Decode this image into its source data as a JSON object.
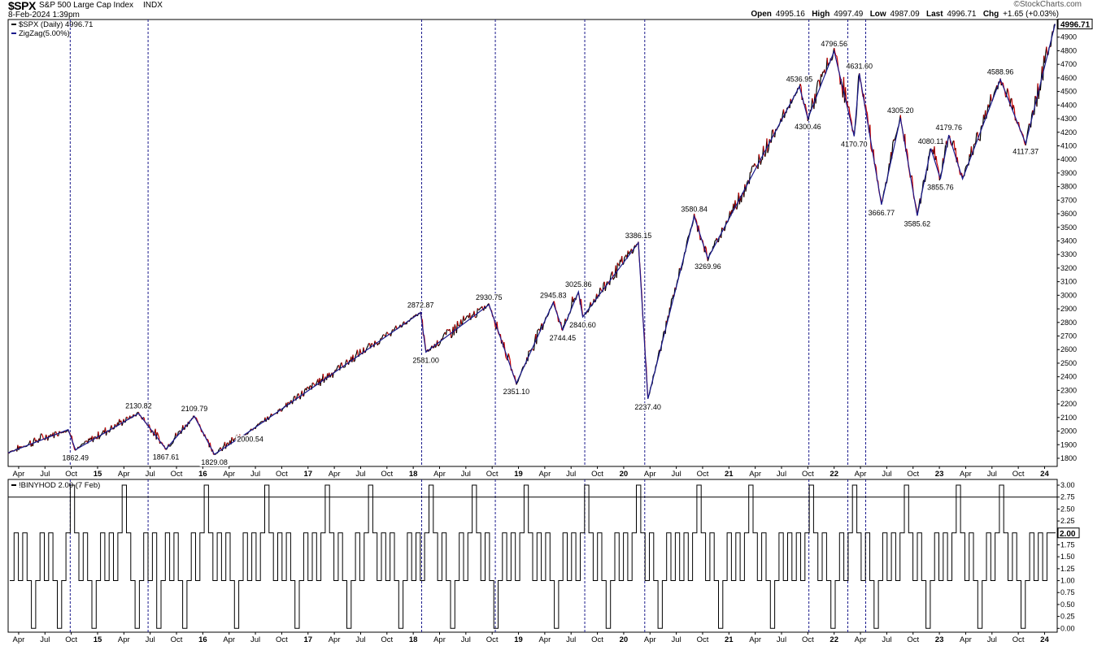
{
  "header": {
    "symbol": "$SPX",
    "name": "S&P 500 Large Cap Index",
    "exchange": "INDX",
    "datetime": "8-Feb-2024 1:39pm",
    "brand": "©StockCharts.com",
    "quote": [
      {
        "label": "Open",
        "value": "4995.16"
      },
      {
        "label": "High",
        "value": "4997.49"
      },
      {
        "label": "Low",
        "value": "4987.09"
      },
      {
        "label": "Last",
        "value": "4996.71"
      },
      {
        "label": "Chg",
        "value": "+1.65 (+0.03%)"
      }
    ]
  },
  "colors": {
    "price_up": "#000000",
    "price_down": "#cc0000",
    "zigzag": "#1a1a8c",
    "vline": "#1a1a8c",
    "indicator": "#000000",
    "threshold": "#000000"
  },
  "chart_data": [
    {
      "type": "line",
      "panel": "price",
      "legend": [
        {
          "name": "$SPX (Daily) 4996.71",
          "color": "#000000"
        },
        {
          "name": "ZigZag(5.00%)",
          "color": "#1a1a8c"
        }
      ],
      "x_tick_labels": [
        "Apr",
        "Jul",
        "Oct",
        "15",
        "Apr",
        "Jul",
        "Oct",
        "16",
        "Apr",
        "Jul",
        "Oct",
        "17",
        "Apr",
        "Jul",
        "Oct",
        "18",
        "Apr",
        "Jul",
        "Oct",
        "19",
        "Apr",
        "Jul",
        "Oct",
        "20",
        "Apr",
        "Jul",
        "Oct",
        "21",
        "Apr",
        "Jul",
        "Oct",
        "22",
        "Apr",
        "Jul",
        "Oct",
        "23",
        "Apr",
        "Jul",
        "Oct",
        "24"
      ],
      "y_ticks": [
        1800,
        1900,
        2000,
        2100,
        2200,
        2300,
        2400,
        2500,
        2600,
        2700,
        2800,
        2900,
        3000,
        3100,
        3200,
        3300,
        3400,
        3500,
        3600,
        3700,
        3800,
        3900,
        4000,
        4100,
        4200,
        4300,
        4400,
        4500,
        4600,
        4700,
        4800,
        4900
      ],
      "ylim": [
        1740,
        5030
      ],
      "xlim": [
        2014.15,
        2024.12
      ],
      "last_value_label": "4996.71",
      "zigzag": [
        {
          "x": 2014.15,
          "y": 1840
        },
        {
          "x": 2014.72,
          "y": 2011,
          "label": ""
        },
        {
          "x": 2014.79,
          "y": 1862.49,
          "label": "1862.49"
        },
        {
          "x": 2015.39,
          "y": 2130.82,
          "label": "2130.82"
        },
        {
          "x": 2015.65,
          "y": 1867.61,
          "label": "1867.61"
        },
        {
          "x": 2015.92,
          "y": 2109.79,
          "label": "2109.79"
        },
        {
          "x": 2016.11,
          "y": 1829.08,
          "label": "1829.08"
        },
        {
          "x": 2016.45,
          "y": 2000.54,
          "label": "2000.54"
        },
        {
          "x": 2018.07,
          "y": 2872.87,
          "label": "2872.87"
        },
        {
          "x": 2018.12,
          "y": 2581.0,
          "label": "2581.00"
        },
        {
          "x": 2018.72,
          "y": 2930.75,
          "label": "2930.75"
        },
        {
          "x": 2018.98,
          "y": 2351.1,
          "label": "2351.10"
        },
        {
          "x": 2019.33,
          "y": 2945.83,
          "label": "2945.83"
        },
        {
          "x": 2019.42,
          "y": 2744.45,
          "label": "2744.45"
        },
        {
          "x": 2019.57,
          "y": 3025.86,
          "label": "3025.86"
        },
        {
          "x": 2019.61,
          "y": 2840.6,
          "label": "2840.60"
        },
        {
          "x": 2020.14,
          "y": 3386.15,
          "label": "3386.15"
        },
        {
          "x": 2020.23,
          "y": 2237.4,
          "label": "2237.40"
        },
        {
          "x": 2020.67,
          "y": 3580.84,
          "label": "3580.84"
        },
        {
          "x": 2020.8,
          "y": 3269.96,
          "label": "3269.96"
        },
        {
          "x": 2021.67,
          "y": 4536.95,
          "label": "4536.95"
        },
        {
          "x": 2021.75,
          "y": 4300.46,
          "label": "4300.46"
        },
        {
          "x": 2022.0,
          "y": 4796.56,
          "label": "4796.56"
        },
        {
          "x": 2022.19,
          "y": 4170.7,
          "label": "4170.70"
        },
        {
          "x": 2022.24,
          "y": 4631.6,
          "label": "4631.60"
        },
        {
          "x": 2022.45,
          "y": 3666.77,
          "label": "3666.77"
        },
        {
          "x": 2022.63,
          "y": 4305.2,
          "label": "4305.20"
        },
        {
          "x": 2022.79,
          "y": 3585.62,
          "label": "3585.62"
        },
        {
          "x": 2022.92,
          "y": 4080.11,
          "label": "4080.11"
        },
        {
          "x": 2023.01,
          "y": 3855.76,
          "label": "3855.76"
        },
        {
          "x": 2023.09,
          "y": 4179.76,
          "label": "4179.76"
        },
        {
          "x": 2023.22,
          "y": 3855.76,
          "label": ""
        },
        {
          "x": 2023.58,
          "y": 4588.96,
          "label": "4588.96"
        },
        {
          "x": 2023.82,
          "y": 4117.37,
          "label": "4117.37"
        },
        {
          "x": 2024.1,
          "y": 4996.71,
          "label": ""
        }
      ],
      "vertical_markers": [
        2014.74,
        2015.48,
        2018.08,
        2018.78,
        2019.63,
        2020.2,
        2021.76,
        2022.13,
        2022.3
      ]
    },
    {
      "type": "line",
      "panel": "indicator",
      "legend": [
        {
          "name": "!BINYHOD 2.00 (7 Feb)",
          "color": "#000000"
        }
      ],
      "y_ticks": [
        0.0,
        0.25,
        0.5,
        0.75,
        1.0,
        1.25,
        1.5,
        1.75,
        2.0,
        2.25,
        2.5,
        2.75,
        3.0
      ],
      "ylim": [
        -0.08,
        3.12
      ],
      "threshold": 2.75,
      "last_value_label": "2.00",
      "levels_seq": [
        1,
        2,
        1,
        2,
        1,
        0,
        1,
        2,
        1,
        2,
        1,
        0,
        1,
        2,
        3,
        2,
        1,
        2,
        1,
        0,
        1,
        2,
        1,
        2,
        1,
        2,
        3,
        2,
        1,
        0,
        1,
        2,
        1,
        2,
        0,
        1,
        2,
        1,
        2,
        1,
        0,
        1,
        2,
        1,
        2,
        3,
        2,
        1,
        2,
        1,
        2,
        1,
        0,
        1,
        2,
        1,
        2,
        1,
        2,
        3,
        2,
        1,
        2,
        1,
        2,
        1,
        0,
        1,
        2,
        1,
        2,
        1,
        2,
        3,
        2,
        1,
        2,
        1,
        0,
        1,
        2,
        1,
        2,
        3,
        2,
        1,
        2,
        1,
        2,
        1,
        0,
        1,
        2,
        1,
        2,
        1,
        2,
        3,
        2,
        1,
        2,
        1,
        0,
        1,
        2,
        1,
        2,
        3,
        2,
        1,
        2,
        1,
        0,
        1,
        2,
        1,
        2,
        1,
        2,
        3,
        2,
        1,
        2,
        1,
        2,
        1,
        0,
        1,
        2,
        1,
        2,
        1,
        2,
        3,
        2,
        1,
        2,
        1,
        0,
        1,
        2,
        1,
        2,
        1,
        2,
        3,
        2,
        1,
        2,
        1,
        0,
        1,
        2,
        1,
        2,
        1,
        2,
        1,
        2,
        3,
        2,
        1,
        2,
        1,
        0,
        1,
        2,
        1,
        2,
        1,
        2,
        3,
        2,
        1,
        2,
        1,
        0,
        1,
        2,
        1,
        2,
        1,
        2,
        1,
        2,
        3,
        2,
        1,
        2,
        1,
        0,
        1,
        2,
        1,
        2,
        3,
        2,
        1,
        2,
        1,
        0,
        1,
        2,
        1,
        2,
        1,
        2,
        3,
        2,
        1,
        2,
        1,
        0,
        1,
        2,
        1,
        2,
        1,
        2,
        3,
        2,
        1,
        2,
        1,
        0,
        1,
        2,
        1,
        2,
        3,
        2,
        1,
        2,
        1,
        0,
        1,
        2,
        1,
        2,
        1,
        2,
        2
      ]
    }
  ]
}
